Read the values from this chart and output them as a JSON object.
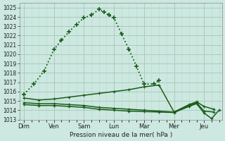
{
  "background_color": "#cce8e0",
  "grid_color_major": "#aaccbb",
  "grid_color_minor": "#bbddcc",
  "line_color": "#1a5c1a",
  "title": "Pression niveau de la mer( hPa )",
  "ylim": [
    1013,
    1025.5
  ],
  "yticks": [
    1013,
    1014,
    1015,
    1016,
    1017,
    1018,
    1019,
    1020,
    1021,
    1022,
    1023,
    1024,
    1025
  ],
  "day_labels": [
    "Dim",
    "Ven",
    "Sam",
    "Lun",
    "Mar",
    "Mer",
    "Jeu"
  ],
  "day_positions": [
    0,
    1,
    2,
    3,
    4,
    5,
    6
  ],
  "xlim": [
    -0.15,
    6.6
  ],
  "lines": [
    {
      "x": [
        0.0,
        0.33,
        0.67,
        1.0,
        1.25,
        1.5,
        1.75,
        2.0,
        2.25,
        2.5,
        2.67,
        2.83,
        3.0,
        3.25,
        3.5,
        3.75,
        4.0,
        4.33,
        4.5
      ],
      "y": [
        1015.7,
        1016.8,
        1018.2,
        1020.5,
        1021.5,
        1022.4,
        1023.2,
        1023.9,
        1024.2,
        1024.8,
        1024.5,
        1024.2,
        1023.9,
        1022.2,
        1020.5,
        1018.7,
        1016.8,
        1016.8,
        1017.2
      ],
      "style": "dotted",
      "lw": 1.3,
      "ms": 5
    },
    {
      "x": [
        0.0,
        0.5,
        1.0,
        1.5,
        2.0,
        2.5,
        3.0,
        3.5,
        4.0,
        4.5,
        5.0,
        5.5,
        5.75,
        6.0,
        6.33
      ],
      "y": [
        1015.3,
        1015.1,
        1015.2,
        1015.4,
        1015.6,
        1015.8,
        1016.0,
        1016.2,
        1016.5,
        1016.7,
        1013.8,
        1014.6,
        1014.9,
        1014.4,
        1014.1
      ],
      "style": "solid",
      "lw": 1.1,
      "ms": 3
    },
    {
      "x": [
        0.0,
        0.5,
        1.0,
        1.5,
        2.0,
        2.5,
        3.0,
        3.5,
        4.0,
        4.5,
        5.0,
        5.5,
        5.75,
        6.0,
        6.33
      ],
      "y": [
        1014.8,
        1014.7,
        1014.7,
        1014.6,
        1014.5,
        1014.3,
        1014.2,
        1014.1,
        1014.0,
        1013.9,
        1013.8,
        1014.5,
        1014.8,
        1013.9,
        1013.8
      ],
      "style": "solid",
      "lw": 1.1,
      "ms": 3
    },
    {
      "x": [
        0.0,
        0.5,
        1.0,
        1.5,
        2.0,
        2.5,
        3.0,
        3.5,
        4.0,
        4.5,
        5.0,
        5.5,
        5.75,
        6.0,
        6.25,
        6.5
      ],
      "y": [
        1014.6,
        1014.5,
        1014.5,
        1014.4,
        1014.3,
        1014.1,
        1014.0,
        1013.9,
        1013.85,
        1013.8,
        1013.75,
        1014.4,
        1014.7,
        1013.7,
        1013.1,
        1014.0
      ],
      "style": "solid",
      "lw": 1.1,
      "ms": 3
    }
  ]
}
